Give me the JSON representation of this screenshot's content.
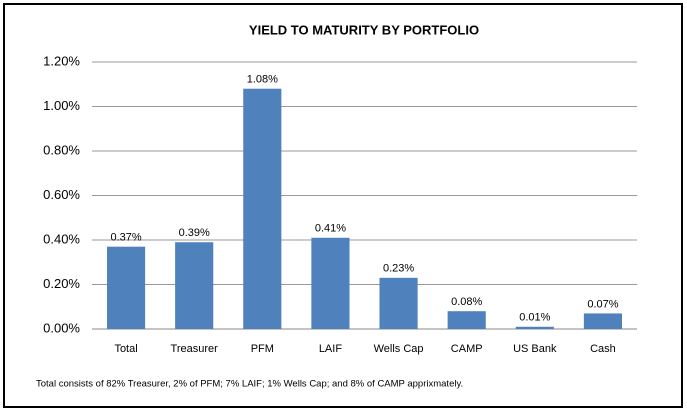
{
  "chart_data": {
    "type": "bar",
    "title": "YIELD TO MATURITY BY PORTFOLIO",
    "categories": [
      "Total",
      "Treasurer",
      "PFM",
      "LAIF",
      "Wells Cap",
      "CAMP",
      "US Bank",
      "Cash"
    ],
    "values": [
      0.37,
      0.39,
      1.08,
      0.41,
      0.23,
      0.08,
      0.01,
      0.07
    ],
    "value_labels": [
      "0.37%",
      "0.39%",
      "1.08%",
      "0.41%",
      "0.23%",
      "0.08%",
      "0.01%",
      "0.07%"
    ],
    "color": "#4f81bd",
    "ylim": [
      0,
      1.2
    ],
    "yticks": [
      {
        "value": 0,
        "label": "0.00%"
      },
      {
        "value": 0.2,
        "label": "0.20%"
      },
      {
        "value": 0.4,
        "label": "0.40%"
      },
      {
        "value": 0.6,
        "label": "0.60%"
      },
      {
        "value": 0.8,
        "label": "0.80%"
      },
      {
        "value": 1.0,
        "label": "1.00%"
      },
      {
        "value": 1.2,
        "label": "1.20%"
      }
    ],
    "grid": true,
    "note": "Total consists of 82% Treasurer, 2% of PFM; 7% LAIF; 1% Wells Cap; and 8% of CAMP apprixmately."
  }
}
